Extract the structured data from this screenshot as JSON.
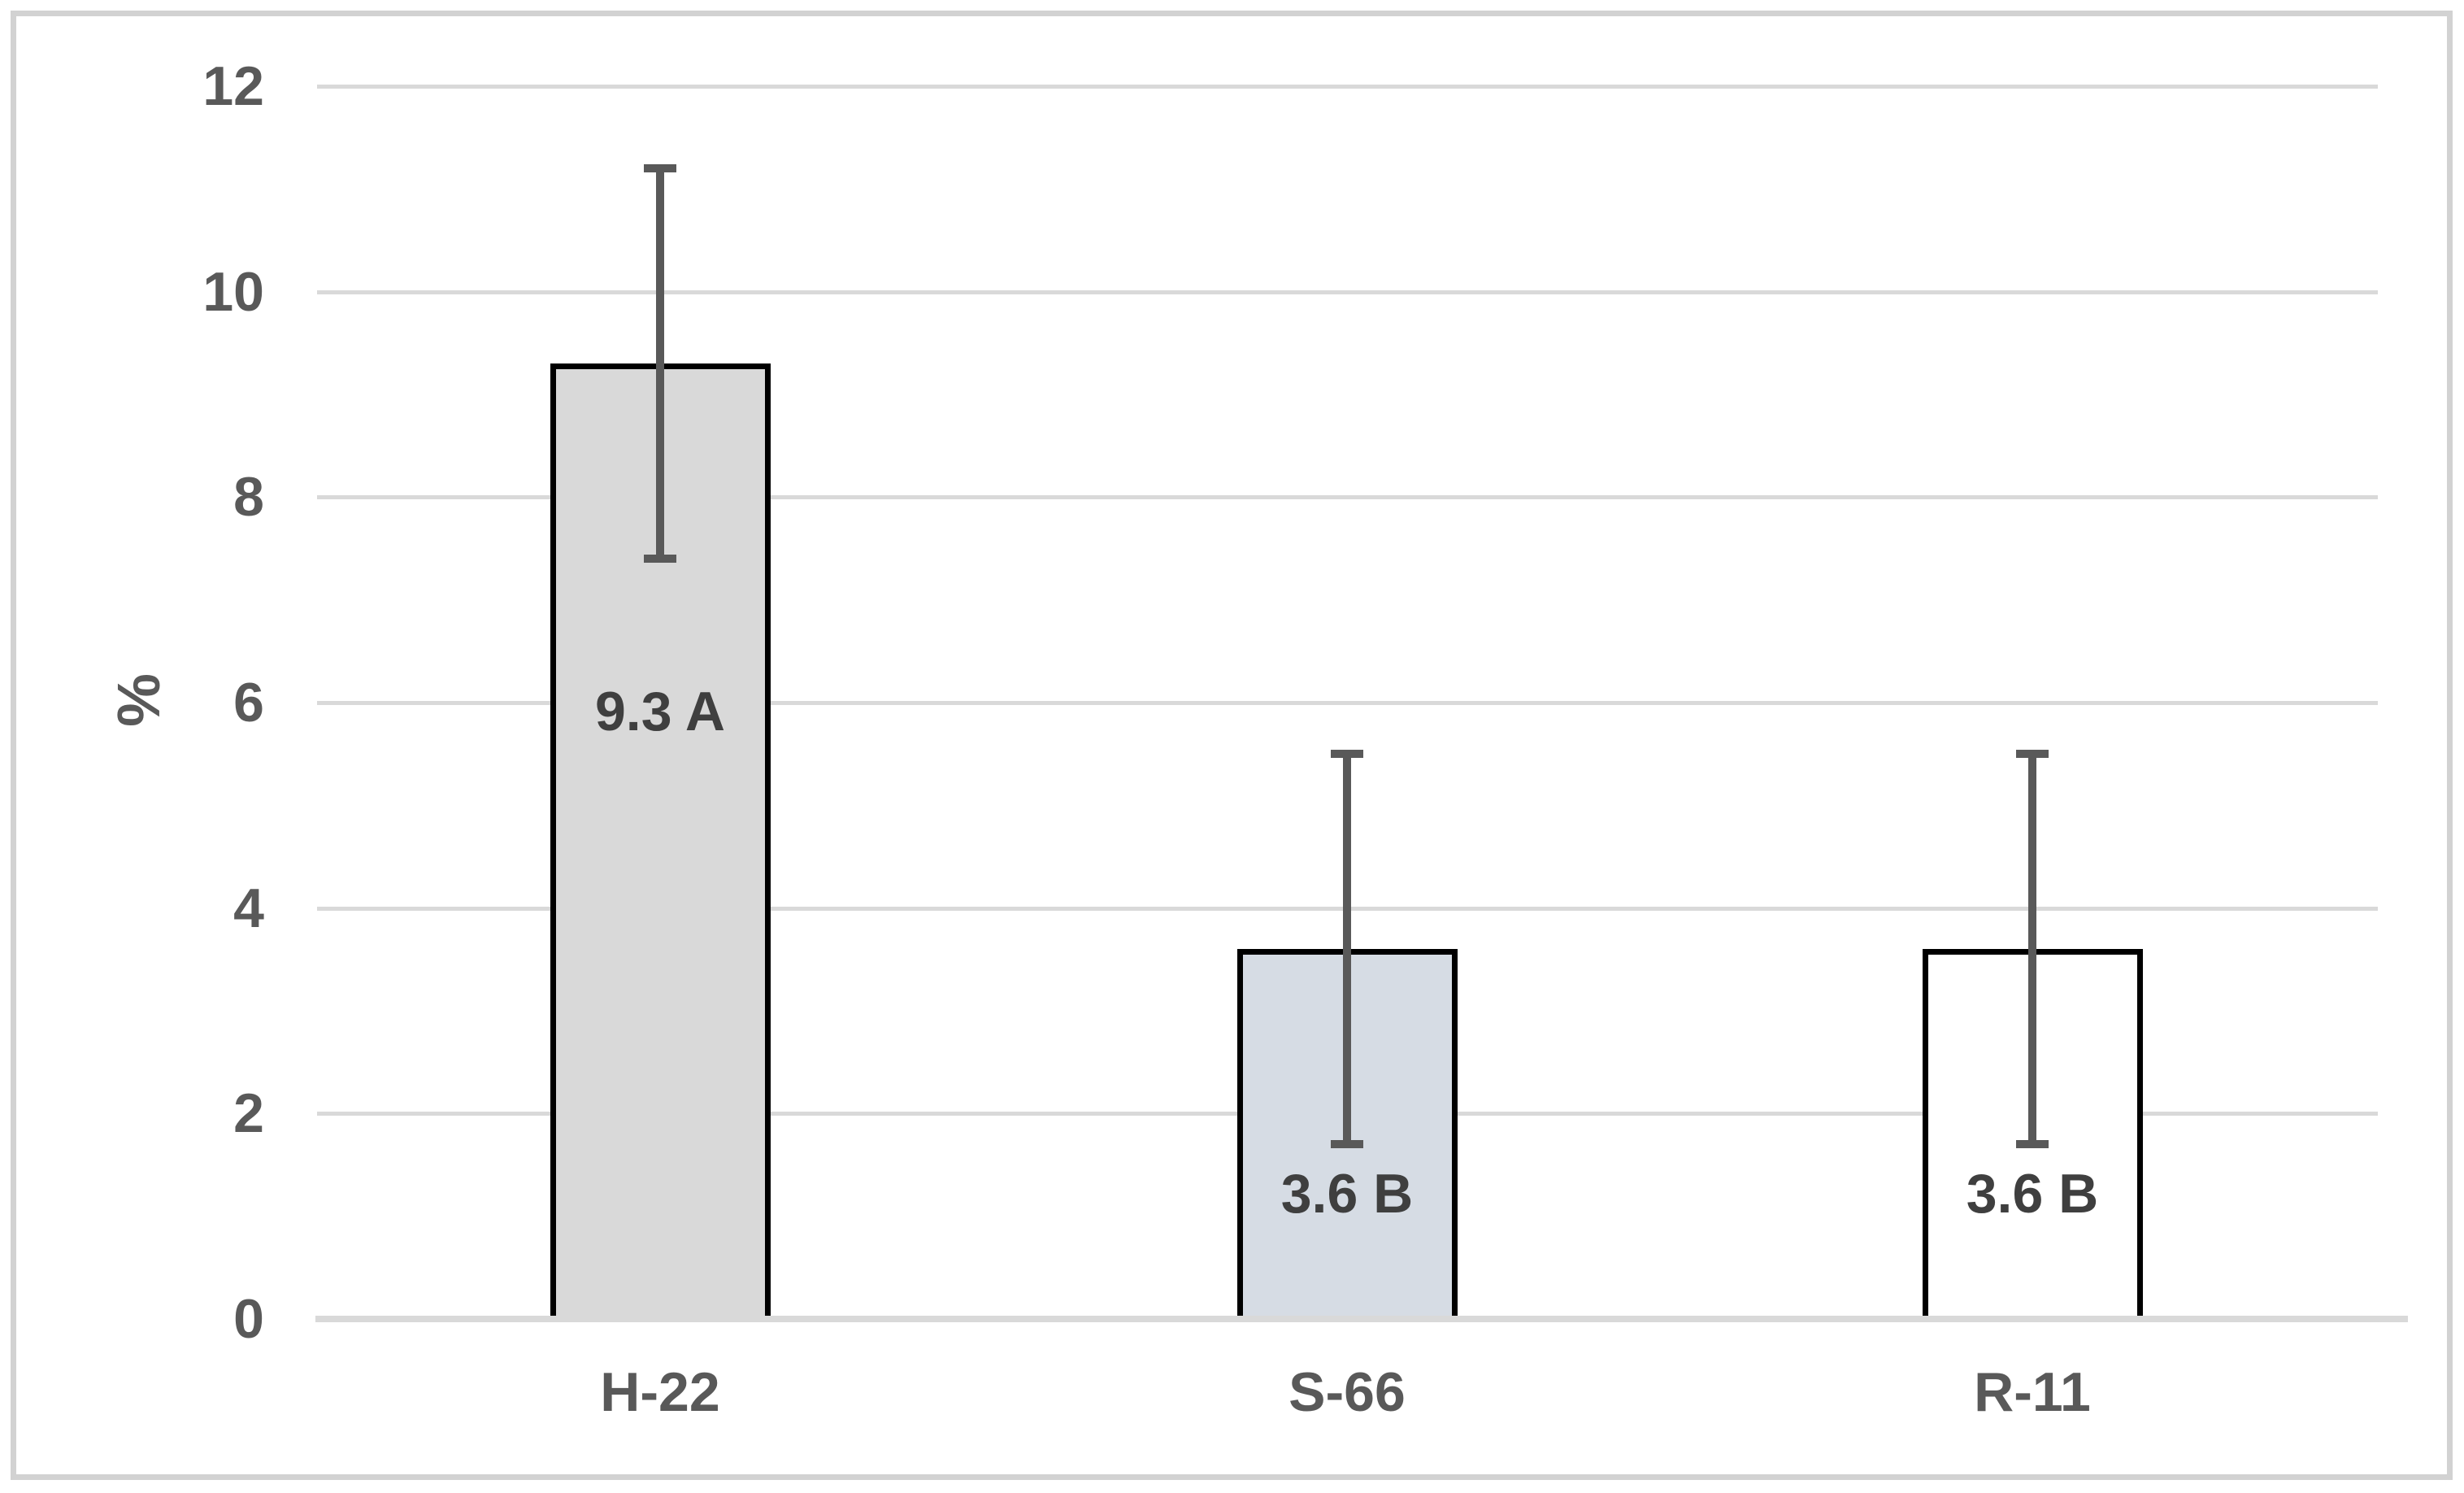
{
  "chart_data": {
    "type": "bar",
    "title": "",
    "categories": [
      "H-22",
      "S-66",
      "R-11"
    ],
    "values": [
      9.3,
      3.6,
      3.6
    ],
    "bar_labels": [
      "9.3 A",
      "3.6 B",
      "3.6 B"
    ],
    "error_bars": [
      {
        "low": 7.4,
        "high": 11.2
      },
      {
        "low": 1.7,
        "high": 5.5
      },
      {
        "low": 1.7,
        "high": 5.5
      }
    ],
    "ylabel": "%",
    "yticks": [
      "0",
      "2",
      "4",
      "6",
      "8",
      "10",
      "12"
    ],
    "ytick_values": [
      0,
      2,
      4,
      6,
      8,
      10,
      12
    ],
    "ylim": [
      0,
      12
    ],
    "grid": true,
    "legend": "none",
    "colors": {
      "bar_fills": [
        "#d9d9d9",
        "#d6dce4",
        "#ffffff"
      ],
      "bar_border": "#000000",
      "error_bar": "#595959",
      "gridline": "#d9d9d9",
      "tick_label": "#595959",
      "data_label": "#3f3f3f",
      "frame": "#d2d2d2"
    }
  }
}
